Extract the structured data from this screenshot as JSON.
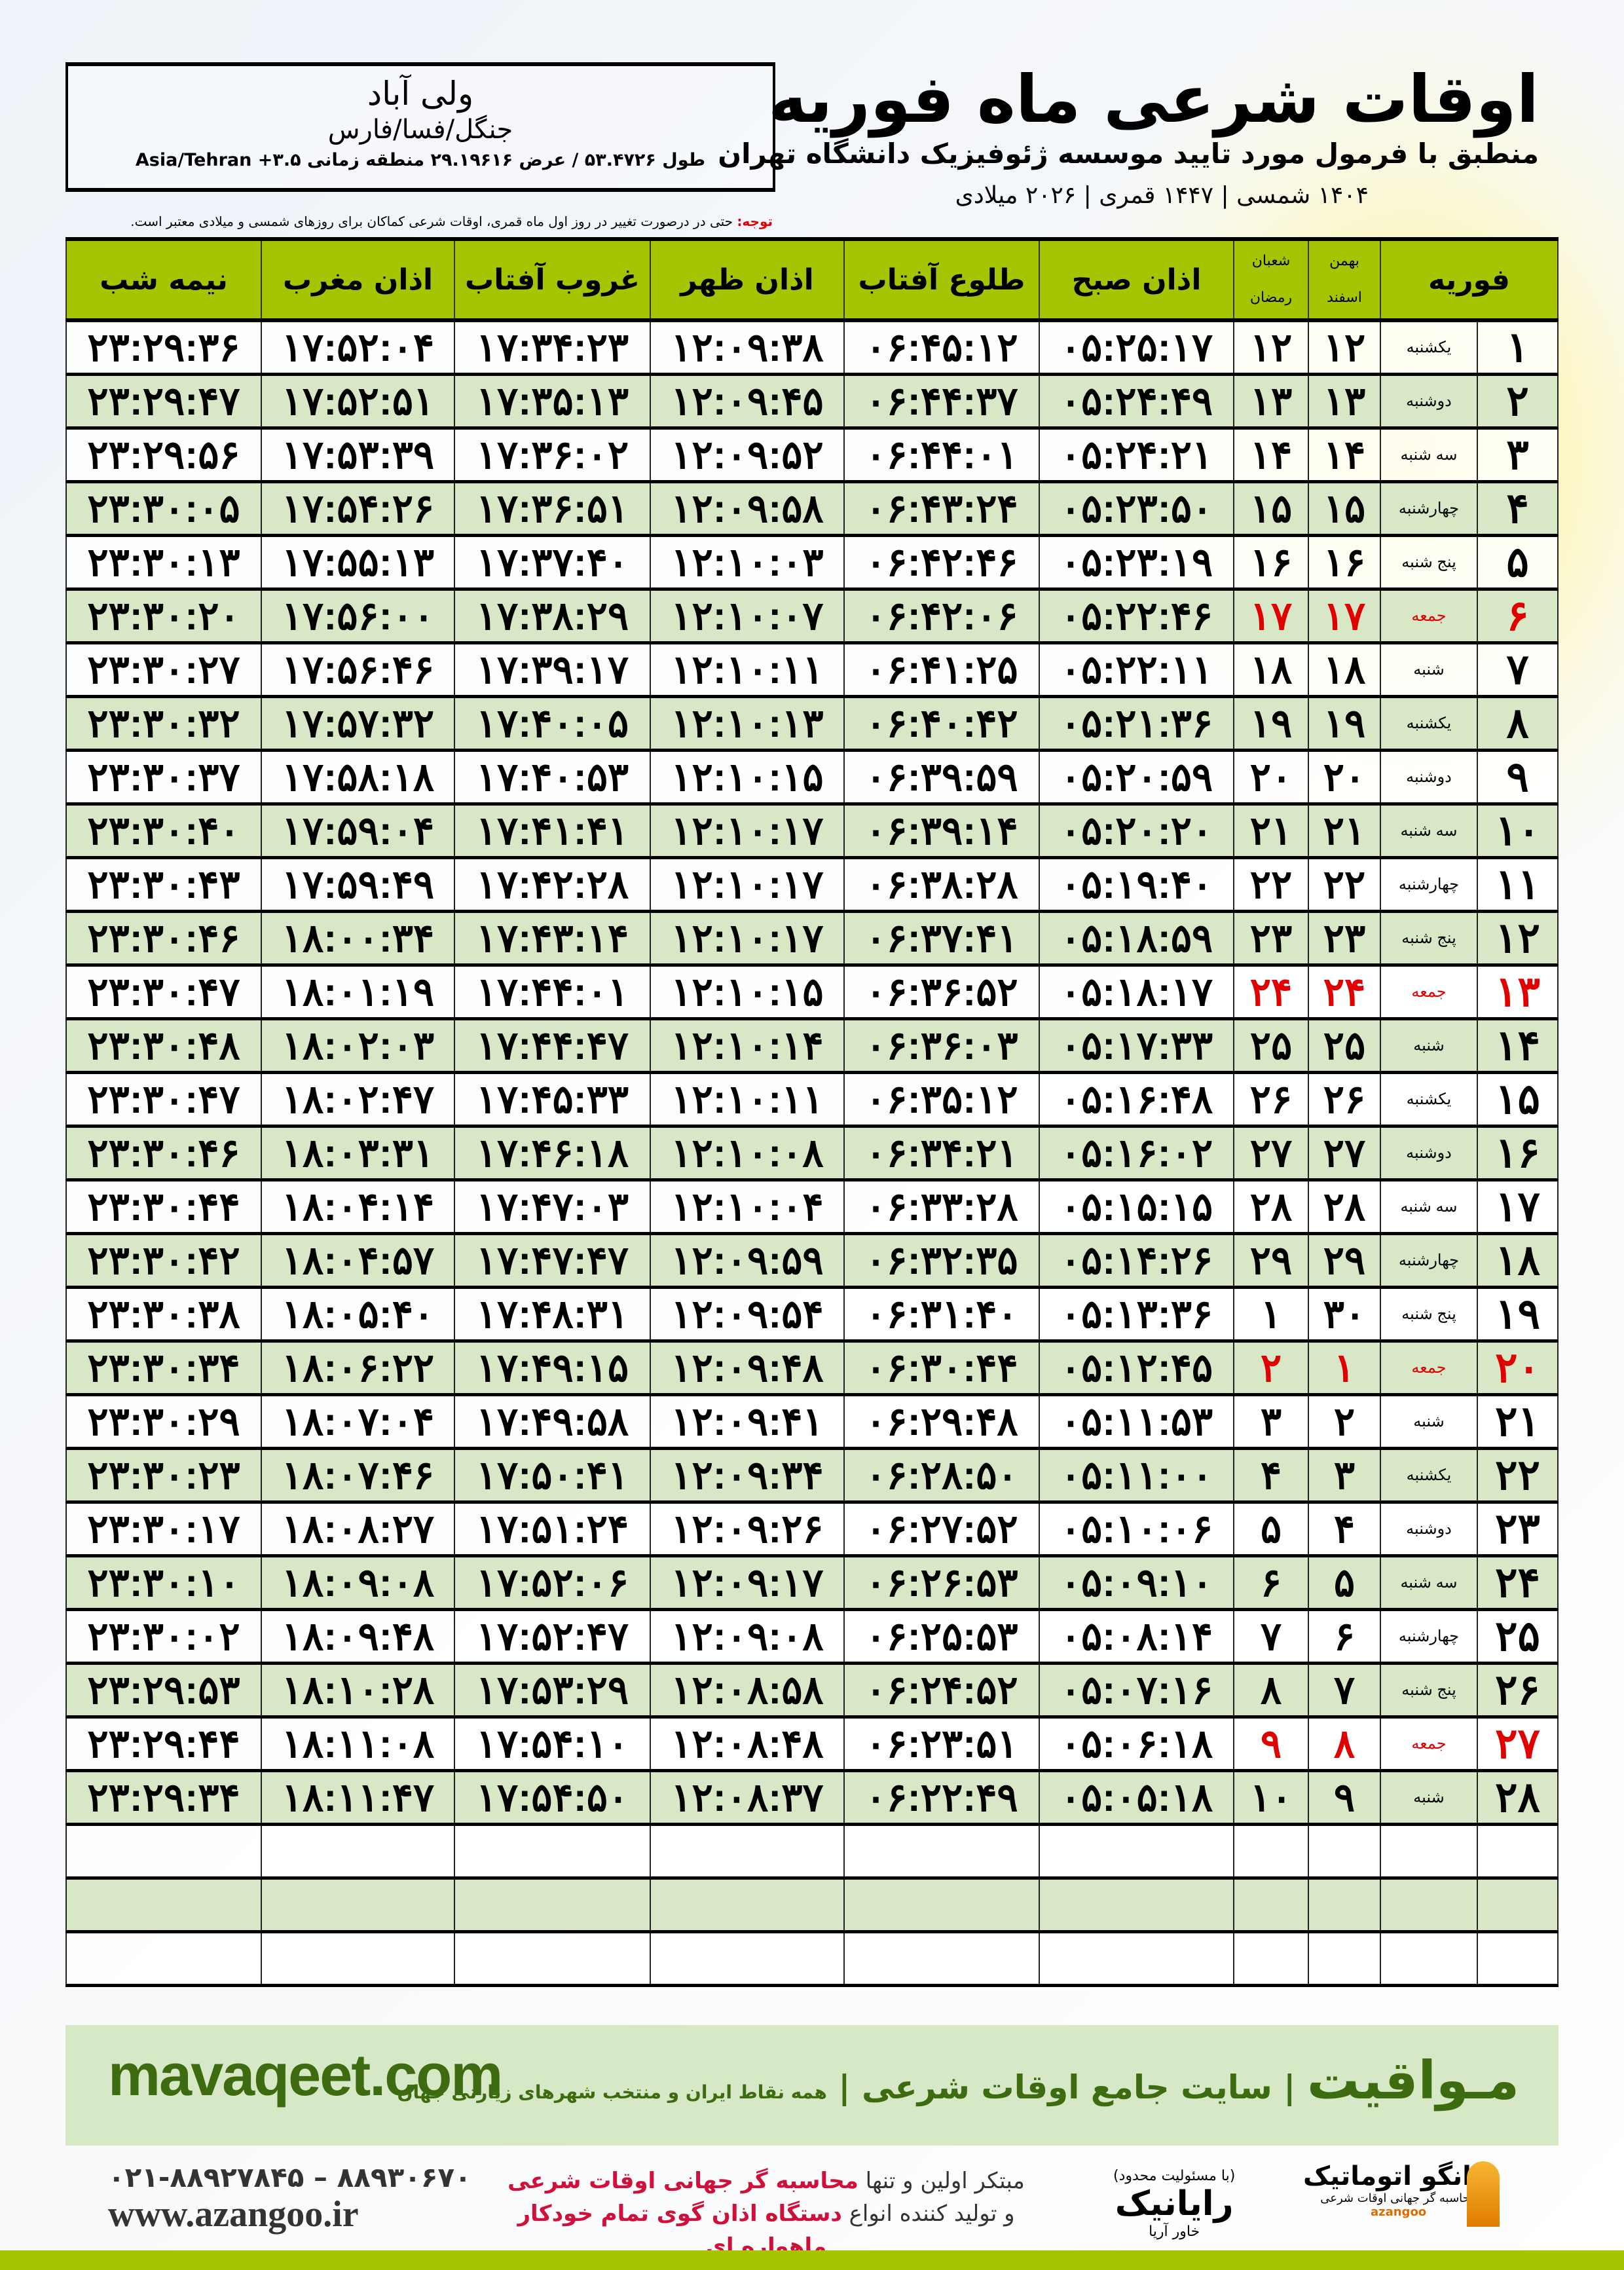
{
  "location": {
    "city": "ولی آباد",
    "region": "جنگل/فسا/فارس",
    "coords": "طول ۵۳.۴۷۲۶ / عرض ۲۹.۱۹۶۱۶ منطقه زمانی ۳.۵+ Asia/Tehran"
  },
  "header": {
    "title": "اوقات شرعی ماه فوریه",
    "subtitle": "منطبق با فرمول مورد تایید موسسه ژئوفیزیک دانشگاه تهران",
    "years": "۱۴۰۴ شمسی | ۱۴۴۷ قمری | ۲۰۲۶ میلادی"
  },
  "notice": {
    "label": "توجه:",
    "text": " حتی در درصورت تغییر در روز اول ماه قمری، اوقات شرعی کماکان برای روزهای شمسی و میلادی معتبر است."
  },
  "columns": {
    "month": "فوریه",
    "shamsi_top": "بهمن",
    "shamsi_bottom": "اسفند",
    "hijri_top": "شعبان",
    "hijri_bottom": "رمضان",
    "fajr": "اذان صبح",
    "sunrise": "طلوع آفتاب",
    "dhuhr": "اذان ظهر",
    "sunset": "غروب آفتاب",
    "maghrib": "اذان مغرب",
    "midnight": "نیمه شب"
  },
  "colors": {
    "header_green": "#a6c402",
    "row_green": "#d8e8c7",
    "friday_red": "#e00000",
    "brand_green": "#3d6b10"
  },
  "rows": [
    {
      "day": "۱",
      "weekday": "یکشنبه",
      "shamsi": "۱۲",
      "hijri": "۱۲",
      "fajr": "۰۵:۲۵:۱۷",
      "sunrise": "۰۶:۴۵:۱۲",
      "dhuhr": "۱۲:۰۹:۳۸",
      "sunset": "۱۷:۳۴:۲۳",
      "maghrib": "۱۷:۵۲:۰۴",
      "midnight": "۲۳:۲۹:۳۶",
      "friday": false
    },
    {
      "day": "۲",
      "weekday": "دوشنبه",
      "shamsi": "۱۳",
      "hijri": "۱۳",
      "fajr": "۰۵:۲۴:۴۹",
      "sunrise": "۰۶:۴۴:۳۷",
      "dhuhr": "۱۲:۰۹:۴۵",
      "sunset": "۱۷:۳۵:۱۳",
      "maghrib": "۱۷:۵۲:۵۱",
      "midnight": "۲۳:۲۹:۴۷",
      "friday": false
    },
    {
      "day": "۳",
      "weekday": "سه شنبه",
      "shamsi": "۱۴",
      "hijri": "۱۴",
      "fajr": "۰۵:۲۴:۲۱",
      "sunrise": "۰۶:۴۴:۰۱",
      "dhuhr": "۱۲:۰۹:۵۲",
      "sunset": "۱۷:۳۶:۰۲",
      "maghrib": "۱۷:۵۳:۳۹",
      "midnight": "۲۳:۲۹:۵۶",
      "friday": false
    },
    {
      "day": "۴",
      "weekday": "چهارشنبه",
      "shamsi": "۱۵",
      "hijri": "۱۵",
      "fajr": "۰۵:۲۳:۵۰",
      "sunrise": "۰۶:۴۳:۲۴",
      "dhuhr": "۱۲:۰۹:۵۸",
      "sunset": "۱۷:۳۶:۵۱",
      "maghrib": "۱۷:۵۴:۲۶",
      "midnight": "۲۳:۳۰:۰۵",
      "friday": false
    },
    {
      "day": "۵",
      "weekday": "پنج شنبه",
      "shamsi": "۱۶",
      "hijri": "۱۶",
      "fajr": "۰۵:۲۳:۱۹",
      "sunrise": "۰۶:۴۲:۴۶",
      "dhuhr": "۱۲:۱۰:۰۳",
      "sunset": "۱۷:۳۷:۴۰",
      "maghrib": "۱۷:۵۵:۱۳",
      "midnight": "۲۳:۳۰:۱۳",
      "friday": false
    },
    {
      "day": "۶",
      "weekday": "جمعه",
      "shamsi": "۱۷",
      "hijri": "۱۷",
      "fajr": "۰۵:۲۲:۴۶",
      "sunrise": "۰۶:۴۲:۰۶",
      "dhuhr": "۱۲:۱۰:۰۷",
      "sunset": "۱۷:۳۸:۲۹",
      "maghrib": "۱۷:۵۶:۰۰",
      "midnight": "۲۳:۳۰:۲۰",
      "friday": true
    },
    {
      "day": "۷",
      "weekday": "شنبه",
      "shamsi": "۱۸",
      "hijri": "۱۸",
      "fajr": "۰۵:۲۲:۱۱",
      "sunrise": "۰۶:۴۱:۲۵",
      "dhuhr": "۱۲:۱۰:۱۱",
      "sunset": "۱۷:۳۹:۱۷",
      "maghrib": "۱۷:۵۶:۴۶",
      "midnight": "۲۳:۳۰:۲۷",
      "friday": false
    },
    {
      "day": "۸",
      "weekday": "یکشنبه",
      "shamsi": "۱۹",
      "hijri": "۱۹",
      "fajr": "۰۵:۲۱:۳۶",
      "sunrise": "۰۶:۴۰:۴۲",
      "dhuhr": "۱۲:۱۰:۱۳",
      "sunset": "۱۷:۴۰:۰۵",
      "maghrib": "۱۷:۵۷:۳۲",
      "midnight": "۲۳:۳۰:۳۲",
      "friday": false
    },
    {
      "day": "۹",
      "weekday": "دوشنبه",
      "shamsi": "۲۰",
      "hijri": "۲۰",
      "fajr": "۰۵:۲۰:۵۹",
      "sunrise": "۰۶:۳۹:۵۹",
      "dhuhr": "۱۲:۱۰:۱۵",
      "sunset": "۱۷:۴۰:۵۳",
      "maghrib": "۱۷:۵۸:۱۸",
      "midnight": "۲۳:۳۰:۳۷",
      "friday": false
    },
    {
      "day": "۱۰",
      "weekday": "سه شنبه",
      "shamsi": "۲۱",
      "hijri": "۲۱",
      "fajr": "۰۵:۲۰:۲۰",
      "sunrise": "۰۶:۳۹:۱۴",
      "dhuhr": "۱۲:۱۰:۱۷",
      "sunset": "۱۷:۴۱:۴۱",
      "maghrib": "۱۷:۵۹:۰۴",
      "midnight": "۲۳:۳۰:۴۰",
      "friday": false
    },
    {
      "day": "۱۱",
      "weekday": "چهارشنبه",
      "shamsi": "۲۲",
      "hijri": "۲۲",
      "fajr": "۰۵:۱۹:۴۰",
      "sunrise": "۰۶:۳۸:۲۸",
      "dhuhr": "۱۲:۱۰:۱۷",
      "sunset": "۱۷:۴۲:۲۸",
      "maghrib": "۱۷:۵۹:۴۹",
      "midnight": "۲۳:۳۰:۴۳",
      "friday": false
    },
    {
      "day": "۱۲",
      "weekday": "پنج شنبه",
      "shamsi": "۲۳",
      "hijri": "۲۳",
      "fajr": "۰۵:۱۸:۵۹",
      "sunrise": "۰۶:۳۷:۴۱",
      "dhuhr": "۱۲:۱۰:۱۷",
      "sunset": "۱۷:۴۳:۱۴",
      "maghrib": "۱۸:۰۰:۳۴",
      "midnight": "۲۳:۳۰:۴۶",
      "friday": false
    },
    {
      "day": "۱۳",
      "weekday": "جمعه",
      "shamsi": "۲۴",
      "hijri": "۲۴",
      "fajr": "۰۵:۱۸:۱۷",
      "sunrise": "۰۶:۳۶:۵۲",
      "dhuhr": "۱۲:۱۰:۱۵",
      "sunset": "۱۷:۴۴:۰۱",
      "maghrib": "۱۸:۰۱:۱۹",
      "midnight": "۲۳:۳۰:۴۷",
      "friday": true
    },
    {
      "day": "۱۴",
      "weekday": "شنبه",
      "shamsi": "۲۵",
      "hijri": "۲۵",
      "fajr": "۰۵:۱۷:۳۳",
      "sunrise": "۰۶:۳۶:۰۳",
      "dhuhr": "۱۲:۱۰:۱۴",
      "sunset": "۱۷:۴۴:۴۷",
      "maghrib": "۱۸:۰۲:۰۳",
      "midnight": "۲۳:۳۰:۴۸",
      "friday": false
    },
    {
      "day": "۱۵",
      "weekday": "یکشنبه",
      "shamsi": "۲۶",
      "hijri": "۲۶",
      "fajr": "۰۵:۱۶:۴۸",
      "sunrise": "۰۶:۳۵:۱۲",
      "dhuhr": "۱۲:۱۰:۱۱",
      "sunset": "۱۷:۴۵:۳۳",
      "maghrib": "۱۸:۰۲:۴۷",
      "midnight": "۲۳:۳۰:۴۷",
      "friday": false
    },
    {
      "day": "۱۶",
      "weekday": "دوشنبه",
      "shamsi": "۲۷",
      "hijri": "۲۷",
      "fajr": "۰۵:۱۶:۰۲",
      "sunrise": "۰۶:۳۴:۲۱",
      "dhuhr": "۱۲:۱۰:۰۸",
      "sunset": "۱۷:۴۶:۱۸",
      "maghrib": "۱۸:۰۳:۳۱",
      "midnight": "۲۳:۳۰:۴۶",
      "friday": false
    },
    {
      "day": "۱۷",
      "weekday": "سه شنبه",
      "shamsi": "۲۸",
      "hijri": "۲۸",
      "fajr": "۰۵:۱۵:۱۵",
      "sunrise": "۰۶:۳۳:۲۸",
      "dhuhr": "۱۲:۱۰:۰۴",
      "sunset": "۱۷:۴۷:۰۳",
      "maghrib": "۱۸:۰۴:۱۴",
      "midnight": "۲۳:۳۰:۴۴",
      "friday": false
    },
    {
      "day": "۱۸",
      "weekday": "چهارشنبه",
      "shamsi": "۲۹",
      "hijri": "۲۹",
      "fajr": "۰۵:۱۴:۲۶",
      "sunrise": "۰۶:۳۲:۳۵",
      "dhuhr": "۱۲:۰۹:۵۹",
      "sunset": "۱۷:۴۷:۴۷",
      "maghrib": "۱۸:۰۴:۵۷",
      "midnight": "۲۳:۳۰:۴۲",
      "friday": false
    },
    {
      "day": "۱۹",
      "weekday": "پنج شنبه",
      "shamsi": "۳۰",
      "hijri": "۱",
      "fajr": "۰۵:۱۳:۳۶",
      "sunrise": "۰۶:۳۱:۴۰",
      "dhuhr": "۱۲:۰۹:۵۴",
      "sunset": "۱۷:۴۸:۳۱",
      "maghrib": "۱۸:۰۵:۴۰",
      "midnight": "۲۳:۳۰:۳۸",
      "friday": false
    },
    {
      "day": "۲۰",
      "weekday": "جمعه",
      "shamsi": "۱",
      "hijri": "۲",
      "fajr": "۰۵:۱۲:۴۵",
      "sunrise": "۰۶:۳۰:۴۴",
      "dhuhr": "۱۲:۰۹:۴۸",
      "sunset": "۱۷:۴۹:۱۵",
      "maghrib": "۱۸:۰۶:۲۲",
      "midnight": "۲۳:۳۰:۳۴",
      "friday": true
    },
    {
      "day": "۲۱",
      "weekday": "شنبه",
      "shamsi": "۲",
      "hijri": "۳",
      "fajr": "۰۵:۱۱:۵۳",
      "sunrise": "۰۶:۲۹:۴۸",
      "dhuhr": "۱۲:۰۹:۴۱",
      "sunset": "۱۷:۴۹:۵۸",
      "maghrib": "۱۸:۰۷:۰۴",
      "midnight": "۲۳:۳۰:۲۹",
      "friday": false
    },
    {
      "day": "۲۲",
      "weekday": "یکشنبه",
      "shamsi": "۳",
      "hijri": "۴",
      "fajr": "۰۵:۱۱:۰۰",
      "sunrise": "۰۶:۲۸:۵۰",
      "dhuhr": "۱۲:۰۹:۳۴",
      "sunset": "۱۷:۵۰:۴۱",
      "maghrib": "۱۸:۰۷:۴۶",
      "midnight": "۲۳:۳۰:۲۳",
      "friday": false
    },
    {
      "day": "۲۳",
      "weekday": "دوشنبه",
      "shamsi": "۴",
      "hijri": "۵",
      "fajr": "۰۵:۱۰:۰۶",
      "sunrise": "۰۶:۲۷:۵۲",
      "dhuhr": "۱۲:۰۹:۲۶",
      "sunset": "۱۷:۵۱:۲۴",
      "maghrib": "۱۸:۰۸:۲۷",
      "midnight": "۲۳:۳۰:۱۷",
      "friday": false
    },
    {
      "day": "۲۴",
      "weekday": "سه شنبه",
      "shamsi": "۵",
      "hijri": "۶",
      "fajr": "۰۵:۰۹:۱۰",
      "sunrise": "۰۶:۲۶:۵۳",
      "dhuhr": "۱۲:۰۹:۱۷",
      "sunset": "۱۷:۵۲:۰۶",
      "maghrib": "۱۸:۰۹:۰۸",
      "midnight": "۲۳:۳۰:۱۰",
      "friday": false
    },
    {
      "day": "۲۵",
      "weekday": "چهارشنبه",
      "shamsi": "۶",
      "hijri": "۷",
      "fajr": "۰۵:۰۸:۱۴",
      "sunrise": "۰۶:۲۵:۵۳",
      "dhuhr": "۱۲:۰۹:۰۸",
      "sunset": "۱۷:۵۲:۴۷",
      "maghrib": "۱۸:۰۹:۴۸",
      "midnight": "۲۳:۳۰:۰۲",
      "friday": false
    },
    {
      "day": "۲۶",
      "weekday": "پنج شنبه",
      "shamsi": "۷",
      "hijri": "۸",
      "fajr": "۰۵:۰۷:۱۶",
      "sunrise": "۰۶:۲۴:۵۲",
      "dhuhr": "۱۲:۰۸:۵۸",
      "sunset": "۱۷:۵۳:۲۹",
      "maghrib": "۱۸:۱۰:۲۸",
      "midnight": "۲۳:۲۹:۵۳",
      "friday": false
    },
    {
      "day": "۲۷",
      "weekday": "جمعه",
      "shamsi": "۸",
      "hijri": "۹",
      "fajr": "۰۵:۰۶:۱۸",
      "sunrise": "۰۶:۲۳:۵۱",
      "dhuhr": "۱۲:۰۸:۴۸",
      "sunset": "۱۷:۵۴:۱۰",
      "maghrib": "۱۸:۱۱:۰۸",
      "midnight": "۲۳:۲۹:۴۴",
      "friday": true
    },
    {
      "day": "۲۸",
      "weekday": "شنبه",
      "shamsi": "۹",
      "hijri": "۱۰",
      "fajr": "۰۵:۰۵:۱۸",
      "sunrise": "۰۶:۲۲:۴۹",
      "dhuhr": "۱۲:۰۸:۳۷",
      "sunset": "۱۷:۵۴:۵۰",
      "maghrib": "۱۸:۱۱:۴۷",
      "midnight": "۲۳:۲۹:۳۴",
      "friday": false
    }
  ],
  "footer": {
    "site": "mavaqeet.com",
    "brand": "مـواقیت",
    "brand_tagline": " | سایت جامع اوقات شرعی | ",
    "brand_sub": "همه نقاط ایران و منتخب شهرهای زیارتی جهان",
    "phone": "۰۲۱-۸۸۹۲۷۸۴۵ – ۸۸۹۳۰۶۷۰",
    "url": "www.azangoo.ir",
    "promo1_a": "مبتکر اولین و تنها ",
    "promo1_b": "محاسبه گر جهانی اوقات شرعی",
    "promo2_a": "و تولید کننده انواع ",
    "promo2_b": "دستگاه اذان گوی تمام خودکار ماهواره ای",
    "rayanik": "رایانیک",
    "rayanik_sub": "خاور آریا",
    "rayanik_note": "(با مسئولیت محدود)",
    "azangoo": "اذانگو اتوماتیک",
    "azangoo_sub": "محاسبه گر جهانی اوقات شرعی",
    "azangoo_en": "azangoo"
  }
}
